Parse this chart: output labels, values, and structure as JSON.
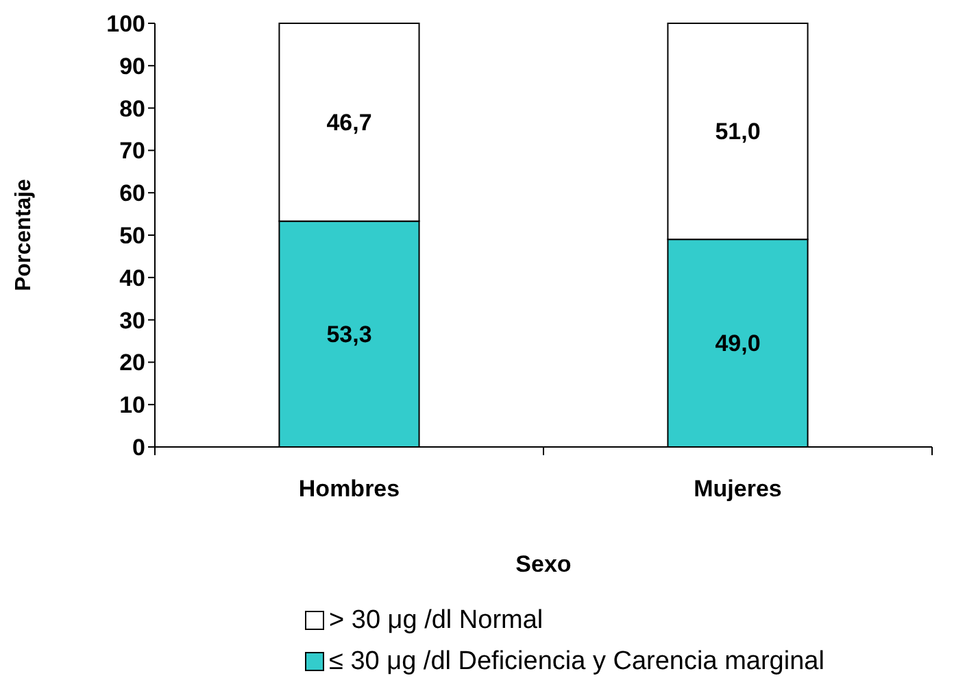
{
  "chart_data": {
    "type": "bar",
    "stacked": true,
    "categories": [
      "Hombres",
      "Mujeres"
    ],
    "series": [
      {
        "name": "≤ 30 μg /dl Deficiencia y Carencia marginal",
        "color": "#33cccc",
        "values": [
          53.3,
          49.0
        ],
        "value_labels": [
          "53,3",
          "49,0"
        ]
      },
      {
        "name": "> 30 μg /dl Normal",
        "color": "#ffffff",
        "values": [
          46.7,
          51.0
        ],
        "value_labels": [
          "46,7",
          "51,0"
        ]
      }
    ],
    "xlabel": "Sexo",
    "ylabel": "Porcentaje",
    "ylim": [
      0,
      100
    ],
    "yticks": [
      0,
      10,
      20,
      30,
      40,
      50,
      60,
      70,
      80,
      90,
      100
    ],
    "grid": false,
    "legend": "bottom"
  }
}
